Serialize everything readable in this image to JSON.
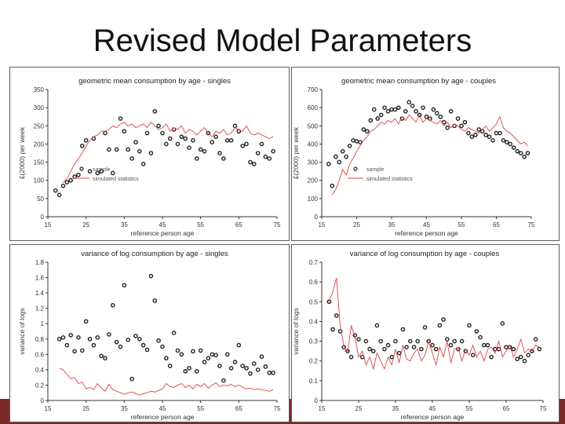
{
  "slide_title": "Revised Model Parameters",
  "colors": {
    "sim": "#d44",
    "sample": "#222",
    "bar": "#7a2a2a"
  },
  "chart_data": [
    {
      "type": "scatter",
      "title": "geometric mean consumption  by age - singles",
      "xlabel": "reference person age",
      "ylabel": "£(2000) per week",
      "xlim": [
        15,
        75
      ],
      "ylim": [
        0,
        350
      ],
      "xticks": [
        "15",
        "25",
        "35",
        "45",
        "55",
        "65",
        "75"
      ],
      "yticks": [
        "0",
        "50",
        "100",
        "150",
        "200",
        "250",
        "300",
        "350"
      ],
      "legend": [
        "sample",
        "simulated statistics"
      ],
      "series": [
        {
          "name": "sample",
          "style": "markers",
          "x": [
            17,
            18,
            19,
            20,
            21,
            22,
            23,
            24,
            25,
            26,
            27,
            28,
            29,
            30,
            31,
            32,
            33,
            34,
            35,
            36,
            37,
            38,
            39,
            40,
            41,
            42,
            43,
            44,
            45,
            46,
            47,
            48,
            49,
            50,
            51,
            52,
            53,
            54,
            55,
            56,
            57,
            58,
            59,
            60,
            61,
            62,
            63,
            64,
            65,
            66,
            67,
            68,
            69,
            70,
            71,
            72,
            73,
            74
          ],
          "y": [
            72,
            60,
            85,
            95,
            100,
            110,
            115,
            195,
            210,
            125,
            215,
            120,
            125,
            230,
            185,
            120,
            185,
            270,
            235,
            185,
            160,
            205,
            180,
            145,
            230,
            175,
            290,
            250,
            230,
            200,
            215,
            240,
            200,
            220,
            215,
            190,
            210,
            160,
            185,
            180,
            230,
            205,
            220,
            175,
            160,
            210,
            210,
            250,
            235,
            195,
            200,
            150,
            145,
            175,
            200,
            165,
            160,
            180
          ]
        },
        {
          "name": "simulated statistics",
          "style": "line",
          "x": [
            19,
            20,
            21,
            22,
            23,
            24,
            25,
            26,
            27,
            28,
            29,
            30,
            31,
            32,
            33,
            34,
            35,
            36,
            37,
            38,
            39,
            40,
            41,
            42,
            43,
            44,
            45,
            46,
            47,
            48,
            49,
            50,
            51,
            52,
            53,
            54,
            55,
            56,
            57,
            58,
            59,
            60,
            61,
            62,
            63,
            64,
            65,
            66,
            67,
            68,
            69,
            70,
            71,
            72,
            73,
            74
          ],
          "y": [
            95,
            105,
            125,
            145,
            160,
            175,
            195,
            210,
            220,
            225,
            235,
            235,
            240,
            250,
            245,
            255,
            260,
            250,
            255,
            245,
            250,
            255,
            245,
            260,
            250,
            240,
            245,
            255,
            235,
            245,
            240,
            250,
            230,
            240,
            235,
            225,
            235,
            245,
            230,
            220,
            235,
            230,
            240,
            225,
            230,
            245,
            240,
            235,
            250,
            230,
            225,
            230,
            225,
            220,
            215,
            220
          ]
        }
      ]
    },
    {
      "type": "scatter",
      "title": "geometric mean consumption  by age - couples",
      "xlabel": "reference person age",
      "ylabel": "£(2000) per week",
      "xlim": [
        15,
        75
      ],
      "ylim": [
        0,
        700
      ],
      "xticks": [
        "15",
        "25",
        "35",
        "45",
        "55",
        "65",
        "75"
      ],
      "yticks": [
        "0",
        "100",
        "200",
        "300",
        "400",
        "500",
        "600",
        "700"
      ],
      "legend": [
        "sample",
        "simulated statistics"
      ],
      "series": [
        {
          "name": "sample",
          "style": "markers",
          "x": [
            17,
            18,
            19,
            20,
            21,
            22,
            23,
            24,
            25,
            26,
            27,
            28,
            29,
            30,
            31,
            32,
            33,
            34,
            35,
            36,
            37,
            38,
            39,
            40,
            41,
            42,
            43,
            44,
            45,
            46,
            47,
            48,
            49,
            50,
            51,
            52,
            53,
            54,
            55,
            56,
            57,
            58,
            59,
            60,
            61,
            62,
            63,
            64,
            65,
            66,
            67,
            68,
            69,
            70,
            71,
            72,
            73,
            74
          ],
          "y": [
            290,
            170,
            330,
            300,
            360,
            330,
            390,
            420,
            415,
            410,
            480,
            470,
            530,
            590,
            540,
            560,
            600,
            580,
            590,
            590,
            600,
            540,
            580,
            630,
            610,
            580,
            560,
            600,
            550,
            540,
            590,
            570,
            550,
            520,
            490,
            580,
            500,
            540,
            500,
            520,
            460,
            440,
            450,
            480,
            470,
            450,
            440,
            420,
            460,
            460,
            420,
            410,
            400,
            380,
            360,
            350,
            330,
            350
          ]
        },
        {
          "name": "simulated statistics",
          "style": "line",
          "x": [
            18,
            19,
            20,
            21,
            22,
            23,
            24,
            25,
            26,
            27,
            28,
            29,
            30,
            31,
            32,
            33,
            34,
            35,
            36,
            37,
            38,
            39,
            40,
            41,
            42,
            43,
            44,
            45,
            46,
            47,
            48,
            49,
            50,
            51,
            52,
            53,
            54,
            55,
            56,
            57,
            58,
            59,
            60,
            61,
            62,
            63,
            64,
            65,
            66,
            67,
            68,
            69,
            70,
            71,
            72,
            73,
            74
          ],
          "y": [
            120,
            150,
            200,
            260,
            230,
            290,
            320,
            360,
            390,
            420,
            440,
            470,
            480,
            500,
            520,
            510,
            530,
            520,
            540,
            510,
            550,
            530,
            560,
            540,
            520,
            560,
            520,
            540,
            530,
            520,
            510,
            530,
            500,
            520,
            490,
            510,
            500,
            480,
            470,
            490,
            480,
            470,
            460,
            480,
            500,
            470,
            490,
            510,
            550,
            490,
            470,
            460,
            440,
            420,
            400,
            410,
            390
          ]
        }
      ]
    },
    {
      "type": "scatter",
      "title": "variance of log consumption  by age - singles",
      "xlabel": "reference person age",
      "ylabel": "variance of logs",
      "xlim": [
        15,
        75
      ],
      "ylim": [
        0,
        1.8
      ],
      "xticks": [
        "15",
        "25",
        "35",
        "45",
        "55",
        "65",
        "75"
      ],
      "yticks": [
        "0",
        "0.2",
        "0.4",
        "0.6",
        "0.8",
        "1",
        "1.2",
        "1.4",
        "1.6",
        "1.8"
      ],
      "legend": [],
      "series": [
        {
          "name": "sample",
          "style": "markers",
          "x": [
            18,
            19,
            20,
            21,
            22,
            23,
            24,
            25,
            26,
            27,
            28,
            29,
            30,
            31,
            32,
            33,
            34,
            35,
            36,
            37,
            38,
            39,
            40,
            41,
            42,
            43,
            44,
            45,
            46,
            47,
            48,
            49,
            50,
            51,
            52,
            53,
            54,
            55,
            56,
            57,
            58,
            59,
            60,
            61,
            62,
            63,
            64,
            65,
            66,
            67,
            68,
            69,
            70,
            71,
            72,
            73,
            74
          ],
          "y": [
            0.8,
            0.82,
            0.72,
            0.85,
            0.64,
            0.82,
            0.65,
            1.03,
            0.8,
            0.72,
            0.82,
            0.58,
            0.55,
            0.86,
            1.24,
            0.76,
            0.7,
            1.5,
            0.79,
            0.28,
            0.84,
            0.8,
            0.72,
            0.66,
            1.62,
            1.3,
            0.78,
            0.7,
            0.55,
            0.45,
            0.88,
            0.65,
            0.6,
            0.38,
            0.42,
            0.64,
            0.38,
            0.65,
            0.5,
            0.55,
            0.6,
            0.59,
            0.45,
            0.26,
            0.6,
            0.42,
            0.5,
            0.72,
            0.45,
            0.42,
            0.35,
            0.48,
            0.4,
            0.57,
            0.44,
            0.36,
            0.36
          ]
        },
        {
          "name": "simulated statistics",
          "style": "line",
          "x": [
            18,
            19,
            20,
            21,
            22,
            23,
            24,
            25,
            26,
            27,
            28,
            29,
            30,
            31,
            32,
            33,
            34,
            35,
            36,
            37,
            38,
            39,
            40,
            41,
            42,
            43,
            44,
            45,
            46,
            47,
            48,
            49,
            50,
            51,
            52,
            53,
            54,
            55,
            56,
            57,
            58,
            59,
            60,
            61,
            62,
            63,
            64,
            65,
            66,
            67,
            68,
            69,
            70,
            71,
            72,
            73,
            74
          ],
          "y": [
            0.42,
            0.4,
            0.34,
            0.28,
            0.3,
            0.22,
            0.24,
            0.15,
            0.17,
            0.14,
            0.22,
            0.16,
            0.12,
            0.21,
            0.14,
            0.12,
            0.1,
            0.08,
            0.1,
            0.11,
            0.09,
            0.07,
            0.09,
            0.1,
            0.12,
            0.11,
            0.13,
            0.15,
            0.22,
            0.18,
            0.17,
            0.2,
            0.22,
            0.17,
            0.2,
            0.15,
            0.21,
            0.18,
            0.22,
            0.16,
            0.2,
            0.23,
            0.18,
            0.2,
            0.19,
            0.21,
            0.18,
            0.2,
            0.17,
            0.15,
            0.16,
            0.14,
            0.15,
            0.14,
            0.13,
            0.12,
            0.14
          ]
        }
      ]
    },
    {
      "type": "scatter",
      "title": "variance of log consumption  by age - couples",
      "xlabel": "reference person age",
      "ylabel": "variance of logs",
      "xlim": [
        15,
        75
      ],
      "ylim": [
        0,
        0.7
      ],
      "xticks": [
        "15",
        "25",
        "35",
        "45",
        "55",
        "65",
        "75"
      ],
      "yticks": [
        "0",
        "0.1",
        "0.2",
        "0.3",
        "0.4",
        "0.5",
        "0.6",
        "0.7"
      ],
      "legend": [],
      "series": [
        {
          "name": "sample",
          "style": "markers",
          "x": [
            17,
            18,
            19,
            20,
            21,
            22,
            23,
            24,
            25,
            26,
            27,
            28,
            29,
            30,
            31,
            32,
            33,
            34,
            35,
            36,
            37,
            38,
            39,
            40,
            41,
            42,
            43,
            44,
            45,
            46,
            47,
            48,
            49,
            50,
            51,
            52,
            53,
            54,
            55,
            56,
            57,
            58,
            59,
            60,
            61,
            62,
            63,
            64,
            65,
            66,
            67,
            68,
            69,
            70,
            71,
            72,
            73,
            74
          ],
          "y": [
            0.5,
            0.36,
            0.43,
            0.35,
            0.27,
            0.25,
            0.22,
            0.33,
            0.31,
            0.22,
            0.3,
            0.26,
            0.25,
            0.38,
            0.3,
            0.26,
            0.28,
            0.22,
            0.3,
            0.24,
            0.36,
            0.27,
            0.3,
            0.27,
            0.3,
            0.26,
            0.37,
            0.3,
            0.28,
            0.26,
            0.38,
            0.41,
            0.31,
            0.28,
            0.3,
            0.26,
            0.3,
            0.25,
            0.38,
            0.23,
            0.35,
            0.32,
            0.28,
            0.28,
            0.22,
            0.26,
            0.26,
            0.39,
            0.27,
            0.27,
            0.26,
            0.21,
            0.22,
            0.2,
            0.23,
            0.25,
            0.31,
            0.26
          ]
        },
        {
          "name": "simulated statistics",
          "style": "line",
          "x": [
            17,
            18,
            19,
            20,
            21,
            22,
            23,
            24,
            25,
            26,
            27,
            28,
            29,
            30,
            31,
            32,
            33,
            34,
            35,
            36,
            37,
            38,
            39,
            40,
            41,
            42,
            43,
            44,
            45,
            46,
            47,
            48,
            49,
            50,
            51,
            52,
            53,
            54,
            55,
            56,
            57,
            58,
            59,
            60,
            61,
            62,
            63,
            64,
            65,
            66,
            67,
            68,
            69,
            70,
            71,
            72,
            73,
            74
          ],
          "y": [
            0.5,
            0.55,
            0.62,
            0.38,
            0.28,
            0.24,
            0.38,
            0.32,
            0.22,
            0.25,
            0.18,
            0.22,
            0.16,
            0.24,
            0.2,
            0.16,
            0.22,
            0.18,
            0.26,
            0.19,
            0.28,
            0.21,
            0.2,
            0.24,
            0.26,
            0.2,
            0.23,
            0.3,
            0.24,
            0.18,
            0.27,
            0.22,
            0.3,
            0.19,
            0.26,
            0.27,
            0.2,
            0.26,
            0.23,
            0.28,
            0.22,
            0.25,
            0.2,
            0.26,
            0.27,
            0.24,
            0.3,
            0.22,
            0.25,
            0.28,
            0.22,
            0.26,
            0.31,
            0.24,
            0.26,
            0.25,
            0.28,
            0.27
          ]
        }
      ]
    }
  ]
}
